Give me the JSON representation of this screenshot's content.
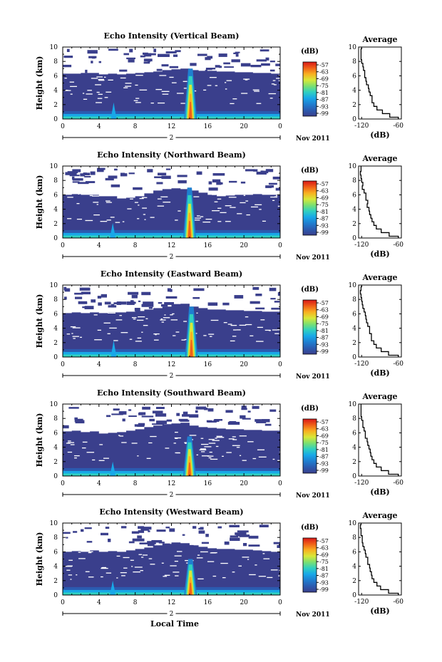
{
  "colors": {
    "background_echo": "#39418a",
    "colormap": [
      "#3a3f8c",
      "#2b5bb0",
      "#1f7fd0",
      "#18a8e8",
      "#30d0c0",
      "#7ce070",
      "#d8e838",
      "#f8b020",
      "#f06018",
      "#d81818"
    ]
  },
  "footer": {
    "xlabel": "Local Time"
  },
  "chart_data": [
    {
      "type": "heatmap",
      "title": "Echo Intensity (Vertical Beam)",
      "ylabel": "Height (km)",
      "xlabel": "Local Time",
      "x_ticks": [
        "0",
        "4",
        "8",
        "12",
        "16",
        "20",
        "0"
      ],
      "x_range": [
        0,
        24
      ],
      "y_ticks": [
        "0",
        "2",
        "4",
        "6",
        "8",
        "10"
      ],
      "y_range": [
        0,
        10
      ],
      "date_label": "2",
      "month_label": "Nov 2011",
      "colorbar": {
        "unit": "(dB)",
        "ticks": [
          "-57",
          "-63",
          "-69",
          "-75",
          "-81",
          "-87",
          "-93",
          "-99"
        ]
      },
      "echo_top_km": [
        6.3,
        6.3,
        6.4,
        6.4,
        6.2,
        6.3,
        6.2,
        6.3,
        6.4,
        6.5,
        6.6,
        6.8,
        6.9,
        7.0,
        6.8,
        6.7,
        6.7,
        6.6,
        6.6,
        6.5,
        6.5,
        6.4,
        6.4,
        6.3
      ],
      "convective_cell": {
        "time_h": 14.1,
        "top_km": 7.0
      },
      "secondary_cell": {
        "time_h": 5.7,
        "top_km": 2.3
      },
      "average_profile": {
        "title": "Average",
        "xlabel": "(dB)",
        "x_ticks": [
          "-120",
          "-60"
        ],
        "x_range": [
          -125,
          -55
        ],
        "y_ticks": [
          "0",
          "2",
          "4",
          "6",
          "8",
          "10"
        ],
        "height_km": [
          0,
          0.5,
          1,
          1.5,
          2,
          2.5,
          3,
          3.5,
          4,
          4.5,
          5,
          5.5,
          6,
          6.5,
          7,
          7.5,
          8,
          8.5,
          9,
          9.5,
          10
        ],
        "db": [
          -60,
          -74,
          -86,
          -95,
          -100,
          -103,
          -103,
          -106,
          -108,
          -109,
          -112,
          -113,
          -115,
          -115,
          -117,
          -118,
          -120,
          -121,
          -121,
          -121,
          -120
        ]
      }
    },
    {
      "type": "heatmap",
      "title": "Echo Intensity (Northward Beam)",
      "ylabel": "Height (km)",
      "xlabel": "Local Time",
      "x_ticks": [
        "0",
        "4",
        "8",
        "12",
        "16",
        "20",
        "0"
      ],
      "x_range": [
        0,
        24
      ],
      "y_ticks": [
        "0",
        "2",
        "4",
        "6",
        "8",
        "10"
      ],
      "y_range": [
        0,
        10
      ],
      "date_label": "2",
      "month_label": "Nov 2011",
      "colorbar": {
        "unit": "(dB)",
        "ticks": [
          "-57",
          "-63",
          "-69",
          "-75",
          "-81",
          "-87",
          "-93",
          "-99"
        ]
      },
      "echo_top_km": [
        6.0,
        6.1,
        6.0,
        6.0,
        5.8,
        5.8,
        5.5,
        5.6,
        5.8,
        6.2,
        6.6,
        6.8,
        6.9,
        6.8,
        6.6,
        6.3,
        6.0,
        5.8,
        5.9,
        6.0,
        6.0,
        6.1,
        6.0,
        6.0
      ],
      "convective_cell": {
        "time_h": 14.0,
        "top_km": 7.0
      },
      "secondary_cell": {
        "time_h": 5.6,
        "top_km": 2.1
      },
      "average_profile": {
        "title": "Average",
        "xlabel": "(dB)",
        "x_ticks": [
          "-120",
          "-60"
        ],
        "x_range": [
          -125,
          -55
        ],
        "y_ticks": [
          "0",
          "2",
          "4",
          "6",
          "8",
          "10"
        ],
        "height_km": [
          0,
          0.5,
          1,
          1.5,
          2,
          2.5,
          3,
          3.5,
          4,
          4.5,
          5,
          5.5,
          6,
          6.5,
          7,
          7.5,
          8,
          8.5,
          9,
          9.5,
          10
        ],
        "db": [
          -60,
          -75,
          -88,
          -96,
          -100,
          -103,
          -105,
          -107,
          -108,
          -111,
          -110,
          -113,
          -113,
          -116,
          -119,
          -118,
          -120,
          -121,
          -122,
          -121,
          -121
        ]
      }
    },
    {
      "type": "heatmap",
      "title": "Echo Intensity (Eastward Beam)",
      "ylabel": "Height (km)",
      "xlabel": "Local Time",
      "x_ticks": [
        "0",
        "4",
        "8",
        "12",
        "16",
        "20",
        "0"
      ],
      "x_range": [
        0,
        24
      ],
      "y_ticks": [
        "0",
        "2",
        "4",
        "6",
        "8",
        "10"
      ],
      "y_range": [
        0,
        10
      ],
      "date_label": "2",
      "month_label": "Nov 2011",
      "colorbar": {
        "unit": "(dB)",
        "ticks": [
          "-57",
          "-63",
          "-69",
          "-75",
          "-81",
          "-87",
          "-93",
          "-99"
        ]
      },
      "echo_top_km": [
        6.1,
        6.2,
        6.1,
        6.2,
        6.1,
        6.2,
        6.2,
        6.3,
        6.4,
        6.6,
        6.8,
        7.0,
        7.2,
        7.4,
        7.0,
        6.8,
        6.6,
        6.6,
        6.5,
        6.5,
        6.4,
        6.4,
        6.3,
        6.3
      ],
      "convective_cell": {
        "time_h": 14.2,
        "top_km": 7.0
      },
      "secondary_cell": {
        "time_h": 5.7,
        "top_km": 2.3
      },
      "average_profile": {
        "title": "Average",
        "xlabel": "(dB)",
        "x_ticks": [
          "-120",
          "-60"
        ],
        "x_range": [
          -125,
          -55
        ],
        "y_ticks": [
          "0",
          "2",
          "4",
          "6",
          "8",
          "10"
        ],
        "height_km": [
          0,
          0.5,
          1,
          1.5,
          2,
          2.5,
          3,
          3.5,
          4,
          4.5,
          5,
          5.5,
          6,
          6.5,
          7,
          7.5,
          8,
          8.5,
          9,
          9.5,
          10
        ],
        "db": [
          -60,
          -76,
          -88,
          -96,
          -100,
          -104,
          -104,
          -107,
          -107,
          -110,
          -112,
          -113,
          -114,
          -116,
          -118,
          -119,
          -120,
          -121,
          -122,
          -121,
          -120
        ]
      }
    },
    {
      "type": "heatmap",
      "title": "Echo Intensity (Southward Beam)",
      "ylabel": "Height (km)",
      "xlabel": "Local Time",
      "x_ticks": [
        "0",
        "4",
        "8",
        "12",
        "16",
        "20",
        "0"
      ],
      "x_range": [
        0,
        24
      ],
      "y_ticks": [
        "0",
        "2",
        "4",
        "6",
        "8",
        "10"
      ],
      "y_range": [
        0,
        10
      ],
      "date_label": "2",
      "month_label": "Nov 2011",
      "colorbar": {
        "unit": "(dB)",
        "ticks": [
          "-57",
          "-63",
          "-69",
          "-75",
          "-81",
          "-87",
          "-93",
          "-99"
        ]
      },
      "echo_top_km": [
        6.2,
        6.3,
        6.1,
        6.2,
        5.9,
        6.0,
        6.1,
        6.3,
        6.5,
        6.8,
        7.0,
        7.2,
        7.3,
        7.4,
        7.0,
        6.8,
        6.7,
        6.6,
        6.5,
        6.5,
        6.4,
        6.4,
        6.3,
        6.3
      ],
      "convective_cell": {
        "time_h": 14.0,
        "top_km": 5.5
      },
      "secondary_cell": {
        "time_h": 5.6,
        "top_km": 2.0
      },
      "average_profile": {
        "title": "Average",
        "xlabel": "(dB)",
        "x_ticks": [
          "-120",
          "-60"
        ],
        "x_range": [
          -125,
          -55
        ],
        "y_ticks": [
          "0",
          "2",
          "4",
          "6",
          "8",
          "10"
        ],
        "height_km": [
          0,
          0.5,
          1,
          1.5,
          2,
          2.5,
          3,
          3.5,
          4,
          4.5,
          5,
          5.5,
          6,
          6.5,
          7,
          7.5,
          8,
          8.5,
          9,
          9.5,
          10
        ],
        "db": [
          -60,
          -76,
          -88,
          -96,
          -100,
          -103,
          -105,
          -106,
          -108,
          -110,
          -111,
          -114,
          -114,
          -116,
          -118,
          -118,
          -120,
          -121,
          -121,
          -121,
          -121
        ]
      }
    },
    {
      "type": "heatmap",
      "title": "Echo Intensity (Westward Beam)",
      "ylabel": "Height (km)",
      "xlabel": "Local Time",
      "x_ticks": [
        "0",
        "4",
        "8",
        "12",
        "16",
        "20",
        "0"
      ],
      "x_range": [
        0,
        24
      ],
      "y_ticks": [
        "0",
        "2",
        "4",
        "6",
        "8",
        "10"
      ],
      "y_range": [
        0,
        10
      ],
      "date_label": "2",
      "month_label": "Nov 2011",
      "colorbar": {
        "unit": "(dB)",
        "ticks": [
          "-57",
          "-63",
          "-69",
          "-75",
          "-81",
          "-87",
          "-93",
          "-99"
        ]
      },
      "echo_top_km": [
        6.0,
        6.1,
        6.0,
        6.2,
        6.0,
        6.1,
        6.0,
        6.2,
        6.4,
        6.6,
        6.9,
        7.1,
        7.3,
        7.2,
        6.9,
        6.7,
        6.5,
        6.4,
        6.4,
        6.3,
        6.3,
        6.2,
        6.1,
        6.0
      ],
      "convective_cell": {
        "time_h": 14.1,
        "top_km": 5.0
      },
      "secondary_cell": {
        "time_h": 5.6,
        "top_km": 2.0
      },
      "average_profile": {
        "title": "Average",
        "xlabel": "(dB)",
        "x_ticks": [
          "-120",
          "-60"
        ],
        "x_range": [
          -125,
          -55
        ],
        "y_ticks": [
          "0",
          "2",
          "4",
          "6",
          "8",
          "10"
        ],
        "height_km": [
          0,
          0.5,
          1,
          1.5,
          2,
          2.5,
          3,
          3.5,
          4,
          4.5,
          5,
          5.5,
          6,
          6.5,
          7,
          7.5,
          8,
          8.5,
          9,
          9.5,
          10
        ],
        "db": [
          -60,
          -76,
          -89,
          -95,
          -100,
          -103,
          -104,
          -106,
          -107,
          -110,
          -110,
          -113,
          -114,
          -116,
          -118,
          -119,
          -119,
          -121,
          -121,
          -122,
          -121
        ]
      }
    }
  ]
}
